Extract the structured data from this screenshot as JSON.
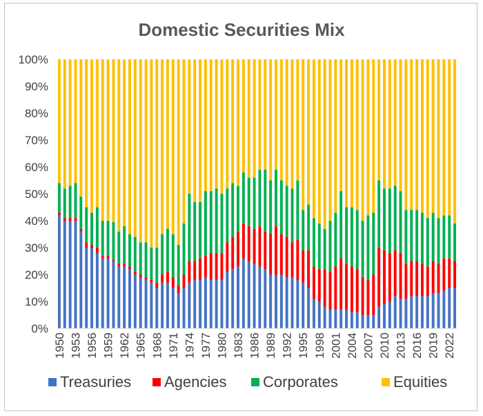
{
  "chart_data": {
    "type": "bar",
    "stacked": true,
    "percent": true,
    "title": "Domestic Securities Mix",
    "xlabel": "",
    "ylabel": "",
    "ylim": [
      0,
      100
    ],
    "y_ticks": [
      "0%",
      "10%",
      "20%",
      "30%",
      "40%",
      "50%",
      "60%",
      "70%",
      "80%",
      "90%",
      "100%"
    ],
    "grid": false,
    "legend_position": "bottom",
    "x": [
      1950,
      1951,
      1952,
      1953,
      1954,
      1955,
      1956,
      1957,
      1958,
      1959,
      1960,
      1961,
      1962,
      1963,
      1964,
      1965,
      1966,
      1967,
      1968,
      1969,
      1970,
      1971,
      1972,
      1973,
      1974,
      1975,
      1976,
      1977,
      1978,
      1979,
      1980,
      1981,
      1982,
      1983,
      1984,
      1985,
      1986,
      1987,
      1988,
      1989,
      1990,
      1991,
      1992,
      1993,
      1994,
      1995,
      1996,
      1997,
      1998,
      1999,
      2000,
      2001,
      2002,
      2003,
      2004,
      2005,
      2006,
      2007,
      2008,
      2009,
      2010,
      2011,
      2012,
      2013,
      2014,
      2015,
      2016,
      2017,
      2018,
      2019,
      2020,
      2021,
      2022,
      2023
    ],
    "x_tick_labels": [
      "1950",
      "1953",
      "1956",
      "1959",
      "1962",
      "1965",
      "1968",
      "1971",
      "1974",
      "1977",
      "1980",
      "1983",
      "1986",
      "1989",
      "1992",
      "1995",
      "1998",
      "2001",
      "2004",
      "2007",
      "2010",
      "2013",
      "2016",
      "2019",
      "2022"
    ],
    "series": [
      {
        "name": "Treasuries",
        "color": "#4472c4",
        "values": [
          42,
          40,
          40,
          40,
          36,
          30,
          30,
          28,
          26,
          26,
          25,
          23,
          23,
          22,
          20,
          19,
          18,
          17,
          15,
          17,
          17,
          15,
          13,
          15,
          17,
          18,
          18,
          19,
          18,
          18,
          18,
          21,
          22,
          23,
          26,
          25,
          24,
          23,
          22,
          20,
          20,
          20,
          19,
          19,
          18,
          17,
          15,
          11,
          10,
          8,
          7,
          7,
          7,
          7,
          6,
          6,
          5,
          5,
          5,
          8,
          9,
          10,
          12,
          11,
          11,
          12,
          12,
          12,
          12,
          13,
          13,
          14,
          15,
          15
        ]
      },
      {
        "name": "Agencies",
        "color": "#ff0000",
        "values": [
          1,
          1,
          1,
          1,
          1,
          2,
          1,
          2,
          1,
          1,
          0.5,
          1,
          1,
          1,
          1,
          1,
          1,
          1,
          2,
          3,
          4,
          4,
          3,
          5,
          8,
          7,
          8,
          8,
          10,
          10,
          10,
          11,
          12,
          13,
          13,
          13,
          13,
          15,
          14,
          15,
          18,
          15,
          15,
          13,
          15,
          12,
          14,
          12,
          12,
          14,
          14,
          16,
          19,
          17,
          17,
          16,
          14,
          13,
          15,
          22,
          20,
          18,
          17,
          17,
          13,
          13,
          13,
          12,
          11,
          12,
          11,
          12,
          11,
          10
        ]
      },
      {
        "name": "Corporates",
        "color": "#00b050",
        "values": [
          11,
          11,
          12,
          13,
          12,
          13,
          12,
          15,
          13,
          13,
          14,
          12,
          14,
          12,
          13,
          12,
          13,
          12,
          13,
          15,
          16,
          16,
          15,
          19,
          25,
          22,
          21,
          24,
          23,
          24,
          22,
          20,
          20,
          17,
          19,
          18,
          19,
          21,
          23,
          20,
          21,
          20,
          19,
          20,
          22,
          15,
          17,
          18,
          17,
          15,
          19,
          20,
          25,
          21,
          22,
          22,
          21,
          24,
          23,
          25,
          23,
          24,
          24,
          23,
          20,
          19,
          19,
          19,
          18,
          18,
          17,
          16,
          16,
          14
        ]
      },
      {
        "name": "Equities",
        "color": "#ffc000",
        "values": [
          46,
          48,
          47,
          46,
          51,
          55,
          57,
          55,
          60,
          60,
          60.5,
          64,
          62,
          65,
          66,
          68,
          68,
          70,
          70,
          65,
          63,
          65,
          69,
          61,
          50,
          53,
          53,
          49,
          49,
          48,
          50,
          48,
          46,
          47,
          42,
          44,
          44,
          41,
          41,
          45,
          41,
          45,
          47,
          48,
          45,
          56,
          54,
          59,
          61,
          63,
          60,
          57,
          49,
          55,
          55,
          56,
          60,
          58,
          57,
          45,
          48,
          48,
          47,
          49,
          56,
          56,
          56,
          57,
          59,
          57,
          59,
          58,
          58,
          61
        ]
      }
    ]
  }
}
